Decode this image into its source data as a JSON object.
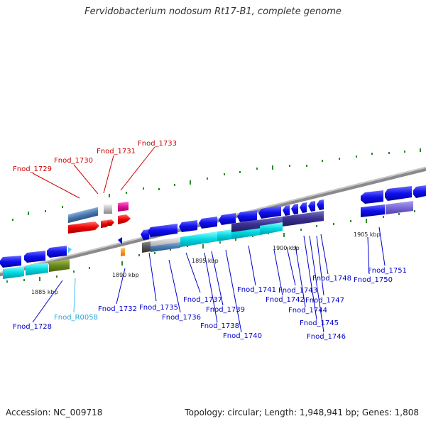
{
  "title": "Fervidobacterium nodosum Rt17-B1, complete genome",
  "footer": {
    "accession": "Accession: NC_009718",
    "summary": "Topology: circular; Length: 1,948,941 bp; Genes: 1,808"
  },
  "scale_labels": [
    "1885 kbp",
    "1890 kbp",
    "1895 kbp",
    "1900 kbp",
    "1905 kbp"
  ],
  "colors": {
    "red_label": "#cc0000",
    "blue_label": "#0000cc",
    "cyan_label": "#00aadd",
    "backbone": "#888888",
    "tick": "#2a8a2a"
  },
  "genes": [
    {
      "label": "Fnod_1729",
      "color": "red"
    },
    {
      "label": "Fnod_1730",
      "color": "red"
    },
    {
      "label": "Fnod_1731",
      "color": "red"
    },
    {
      "label": "Fnod_1733",
      "color": "red"
    },
    {
      "label": "Fnod_1728",
      "color": "blue"
    },
    {
      "label": "Fnod_R0058",
      "color": "cyan"
    },
    {
      "label": "Fnod_1732",
      "color": "blue"
    },
    {
      "label": "Fnod_1735",
      "color": "blue"
    },
    {
      "label": "Fnod_1736",
      "color": "blue"
    },
    {
      "label": "Fnod_1737",
      "color": "blue"
    },
    {
      "label": "Fnod_1738",
      "color": "blue"
    },
    {
      "label": "Fnod_1739",
      "color": "blue"
    },
    {
      "label": "Fnod_1740",
      "color": "blue"
    },
    {
      "label": "Fnod_1741",
      "color": "blue"
    },
    {
      "label": "Fnod_1742",
      "color": "blue"
    },
    {
      "label": "Fnod_1743",
      "color": "blue"
    },
    {
      "label": "Fnod_1744",
      "color": "blue"
    },
    {
      "label": "Fnod_1745",
      "color": "blue"
    },
    {
      "label": "Fnod_1746",
      "color": "blue"
    },
    {
      "label": "Fnod_1747",
      "color": "blue"
    },
    {
      "label": "Fnod_1748",
      "color": "blue"
    },
    {
      "label": "Fnod_1750",
      "color": "blue"
    },
    {
      "label": "Fnod_1751",
      "color": "blue"
    }
  ]
}
